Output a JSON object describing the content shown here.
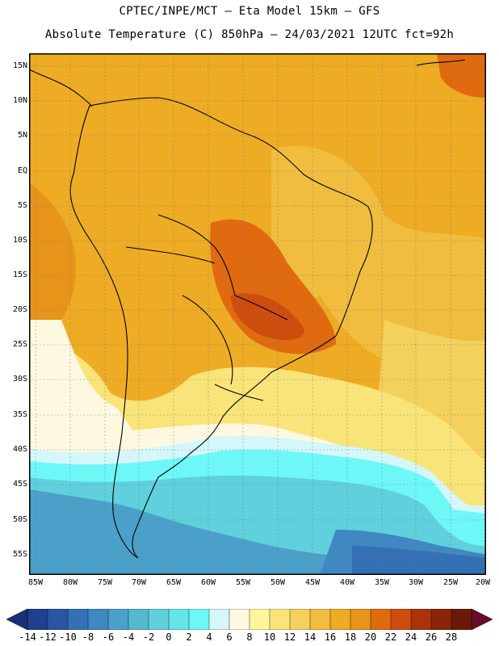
{
  "title": {
    "line1": "CPTEC/INPE/MCT —  Eta Model 15km — GFS",
    "line2": "Absolute Temperature (C) 850hPa — 24/03/2021 12UTC fct=92h"
  },
  "axes": {
    "lat_labels": [
      "15N",
      "10N",
      "5N",
      "EQ",
      "5S",
      "10S",
      "15S",
      "20S",
      "25S",
      "30S",
      "35S",
      "40S",
      "45S",
      "50S",
      "55S"
    ],
    "lon_labels": [
      "85W",
      "80W",
      "75W",
      "70W",
      "65W",
      "60W",
      "55W",
      "50W",
      "45W",
      "40W",
      "35W",
      "30W",
      "25W",
      "20W"
    ]
  },
  "colorbar": {
    "labels": [
      "-14",
      "-12",
      "-10",
      "-8",
      "-6",
      "-4",
      "-2",
      "0",
      "2",
      "4",
      "6",
      "8",
      "10",
      "12",
      "14",
      "16",
      "18",
      "20",
      "22",
      "24",
      "26",
      "28"
    ],
    "colors": [
      "#1f3f8f",
      "#2a55a5",
      "#3470b5",
      "#3f88c2",
      "#4aa0c8",
      "#55b8d0",
      "#5fd0dc",
      "#63e5ea",
      "#6ef7f7",
      "#d3f7fb",
      "#fff8e0",
      "#fff59a",
      "#f9e479",
      "#f4d05c",
      "#f0bd3f",
      "#eeab24",
      "#e8931a",
      "#e06a10",
      "#cc4d0e",
      "#aa3309",
      "#8a2509",
      "#6b1a0a"
    ]
  },
  "icons": {
    "left_arrow": "arrow-left-triangle-icon",
    "right_arrow": "arrow-right-triangle-icon"
  }
}
